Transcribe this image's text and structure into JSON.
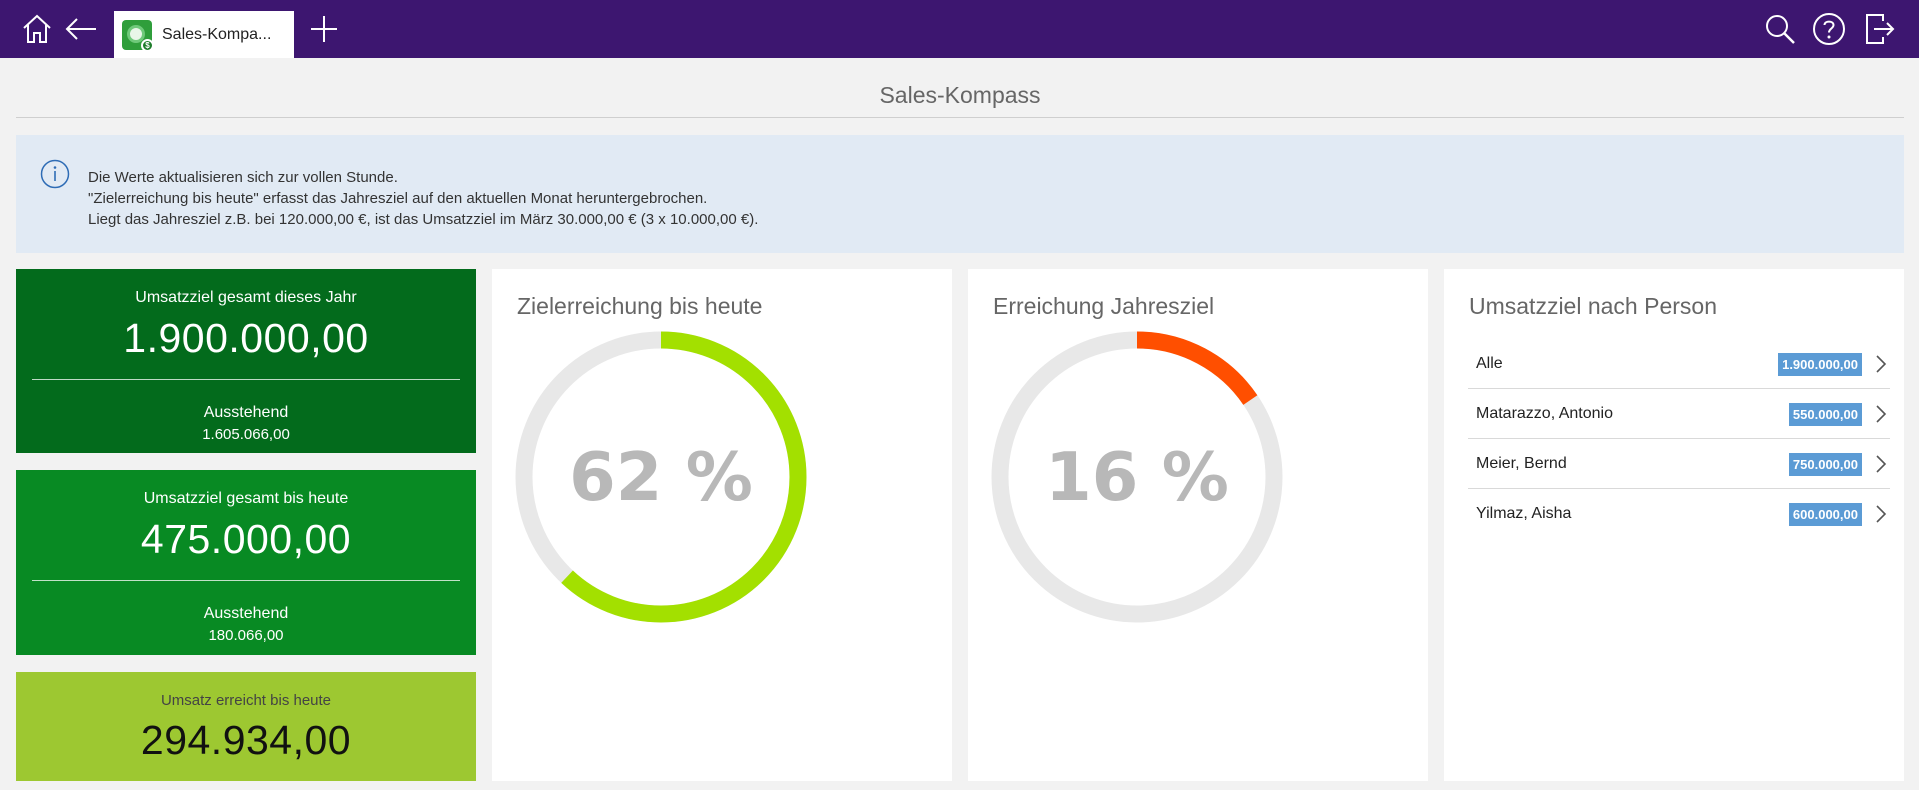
{
  "app": {
    "tab_label": "Sales-Kompa...",
    "brand_color": "#3d1670"
  },
  "page": {
    "title": "Sales-Kompass"
  },
  "info": {
    "line1": "Die Werte aktualisieren sich zur vollen Stunde.",
    "line2": "\"Zielerreichung bis heute\" erfasst das Jahresziel auf den aktuellen Monat heruntergebrochen.",
    "line3": "Liegt das Jahresziel z.B. bei 120.000,00 €, ist das Umsatzziel im März 30.000,00 € (3 x 10.000,00 €)."
  },
  "kpis": [
    {
      "label": "Umsatzziel gesamt dieses Jahr",
      "value": "1.900.000,00",
      "sub_label": "Ausstehend",
      "sub_value": "1.605.066,00",
      "color": "#036b1c"
    },
    {
      "label": "Umsatzziel gesamt bis heute",
      "value": "475.000,00",
      "sub_label": "Ausstehend",
      "sub_value": "180.066,00",
      "color": "#088a23"
    },
    {
      "label": "Umsatz erreicht bis heute",
      "value": "294.934,00",
      "color": "#9dc831"
    }
  ],
  "gauges": [
    {
      "title": "Zielerreichung bis heute",
      "percent_label": "62 %",
      "fraction": 0.62,
      "color": "#a3e000"
    },
    {
      "title": "Erreichung Jahresziel",
      "percent_label": "16 %",
      "fraction": 0.155,
      "color": "#ff4f00"
    }
  ],
  "persons": {
    "title": "Umsatzziel nach Person",
    "badge_color": "#5b9bd5",
    "rows": [
      {
        "name": "Alle",
        "value": "1.900.000,00"
      },
      {
        "name": "Matarazzo, Antonio",
        "value": "550.000,00"
      },
      {
        "name": "Meier, Bernd",
        "value": "750.000,00"
      },
      {
        "name": "Yilmaz, Aisha",
        "value": "600.000,00"
      }
    ]
  },
  "icons": {
    "home": "home-icon",
    "back": "back-arrow-icon",
    "add": "plus-icon",
    "search": "search-icon",
    "help": "help-icon",
    "logout": "logout-icon",
    "info": "info-icon",
    "chevron": "chevron-right-icon"
  }
}
